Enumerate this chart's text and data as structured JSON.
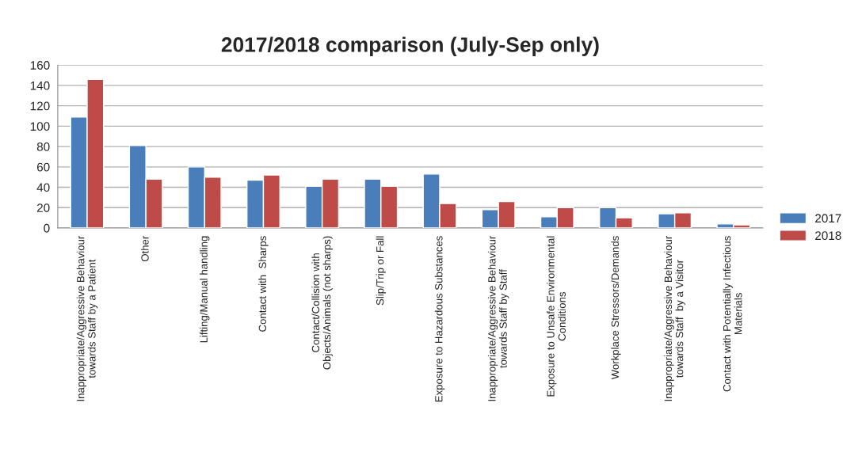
{
  "chart_data": {
    "type": "bar",
    "title": "2017/2018 comparison (July-Sep only)",
    "categories": [
      "Inappropriate/Aggressive Behaviour\ntowards Staff by a Patient",
      "Other",
      "Lifting/Manual handling",
      "Contact with  Sharps",
      "Contact/Collision with\nObjects/Animals (not sharps)",
      "Slip/Trip or Fall",
      "Exposure to Hazardous Substances",
      "Inappropriate/Aggressive Behaviour\ntowards Staff by Staff",
      "Exposure to Unsafe Environmental\nConditions",
      "Workplace Stressors/Demands",
      "Inappropriate/Aggressive Behaviour\ntowards Staff  by a Visitor",
      "Contact with Potentially Infectious\nMaterials"
    ],
    "series": [
      {
        "name": "2017",
        "color": "#4a7ebb",
        "values": [
          109,
          81,
          60,
          47,
          41,
          48,
          53,
          18,
          11,
          20,
          14,
          4
        ]
      },
      {
        "name": "2018",
        "color": "#be4b48",
        "values": [
          146,
          48,
          50,
          52,
          48,
          41,
          24,
          26,
          20,
          10,
          15,
          3
        ]
      }
    ],
    "ylim": [
      0,
      160
    ],
    "yticks": [
      0,
      20,
      40,
      60,
      80,
      100,
      120,
      140,
      160
    ],
    "grid": "y",
    "legend": "right"
  }
}
